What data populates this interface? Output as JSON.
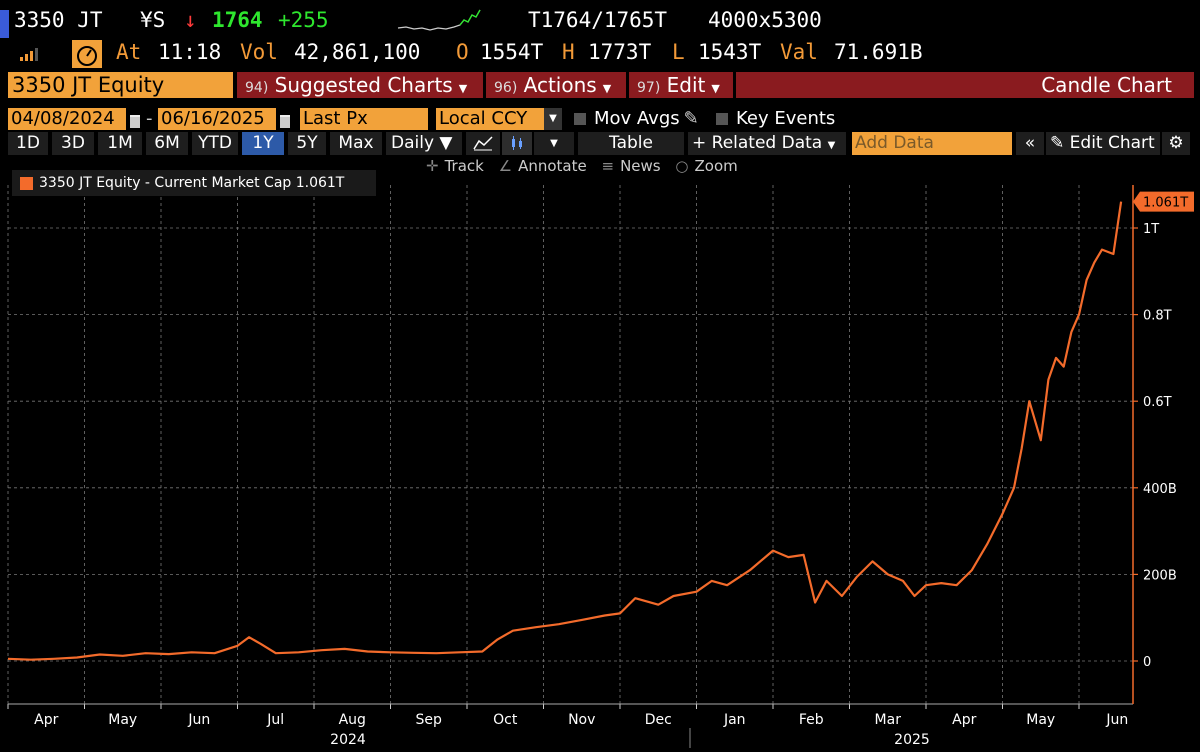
{
  "quote": {
    "ticker": "3350 JT",
    "currency": "¥S",
    "arrow": "↓",
    "last": "1764",
    "change": "+255",
    "bid_ask": "T1764/1765T",
    "size": "4000x5300",
    "at_label": "At",
    "time": "11:18",
    "vol_label": "Vol",
    "vol": "42,861,100",
    "open_label": "O",
    "open": "1554T",
    "high_label": "H",
    "high": "1773T",
    "low_label": "L",
    "low": "1543T",
    "val_label": "Val",
    "val": "71.691B"
  },
  "header": {
    "security": "3350 JT Equity",
    "menus": [
      {
        "num": "94)",
        "label": "Suggested Charts"
      },
      {
        "num": "96)",
        "label": "Actions"
      },
      {
        "num": "97)",
        "label": "Edit"
      }
    ],
    "title": "Candle Chart"
  },
  "controls": {
    "start_date": "04/08/2024",
    "end_date": "06/16/2025",
    "field": "Last Px",
    "currency": "Local CCY",
    "mov_avgs": "Mov Avgs",
    "key_events": "Key Events"
  },
  "toolbar": {
    "periods": [
      "1D",
      "3D",
      "1M",
      "6M",
      "YTD",
      "1Y",
      "5Y",
      "Max"
    ],
    "selected": "1Y",
    "frequency": "Daily",
    "table": "Table",
    "related": "Related Data",
    "add_data_placeholder": "Add Data",
    "edit_chart": "Edit Chart"
  },
  "tools": [
    "Track",
    "Annotate",
    "News",
    "Zoom"
  ],
  "colors": {
    "line": "#f36b2b",
    "accent": "#f2a23a",
    "menu": "#8a1b1f",
    "selected": "#2d5aa8"
  },
  "chart_data": {
    "type": "line",
    "legend": "3350 JT Equity - Current Market Cap 1.061T",
    "last_label": "1.061T",
    "y_ticks": [
      {
        "v": 0,
        "label": "0"
      },
      {
        "v": 200,
        "label": "200B"
      },
      {
        "v": 400,
        "label": "400B"
      },
      {
        "v": 600,
        "label": "0.6T"
      },
      {
        "v": 800,
        "label": "0.8T"
      },
      {
        "v": 1000,
        "label": "1T"
      }
    ],
    "ylim": [
      -50,
      1130
    ],
    "x_months": [
      "Apr",
      "May",
      "Jun",
      "Jul",
      "Aug",
      "Sep",
      "Oct",
      "Nov",
      "Dec",
      "Jan",
      "Feb",
      "Mar",
      "Apr",
      "May",
      "Jun"
    ],
    "years": [
      "2024",
      "2025"
    ],
    "series": [
      {
        "x": [
          0,
          0.3,
          0.6,
          0.9,
          1.2,
          1.5,
          1.8,
          2.1,
          2.4,
          2.7,
          3.0,
          3.15,
          3.3,
          3.5,
          3.8,
          4.1,
          4.4,
          4.7,
          5.0,
          5.3,
          5.6,
          5.9,
          6.2,
          6.4,
          6.6,
          6.9,
          7.2,
          7.5,
          7.8,
          8.0,
          8.2,
          8.5,
          8.7,
          9.0,
          9.2,
          9.4,
          9.7,
          10.0,
          10.2,
          10.4,
          10.55,
          10.7,
          10.9,
          11.1,
          11.3,
          11.5,
          11.7,
          11.85,
          12.0,
          12.2,
          12.4,
          12.6,
          12.8,
          13.0,
          13.15,
          13.25,
          13.35,
          13.5,
          13.6,
          13.7,
          13.8,
          13.9,
          14.0,
          14.1,
          14.2,
          14.3,
          14.45,
          14.55
        ],
        "y": [
          5,
          3,
          5,
          8,
          15,
          12,
          18,
          16,
          20,
          18,
          35,
          55,
          40,
          18,
          20,
          25,
          28,
          22,
          20,
          19,
          18,
          20,
          22,
          50,
          70,
          78,
          85,
          95,
          105,
          110,
          145,
          130,
          150,
          160,
          185,
          175,
          210,
          255,
          240,
          245,
          135,
          185,
          150,
          195,
          230,
          200,
          185,
          150,
          175,
          180,
          175,
          210,
          270,
          340,
          400,
          490,
          600,
          510,
          650,
          700,
          680,
          760,
          800,
          880,
          920,
          950,
          940,
          1061
        ]
      }
    ]
  }
}
